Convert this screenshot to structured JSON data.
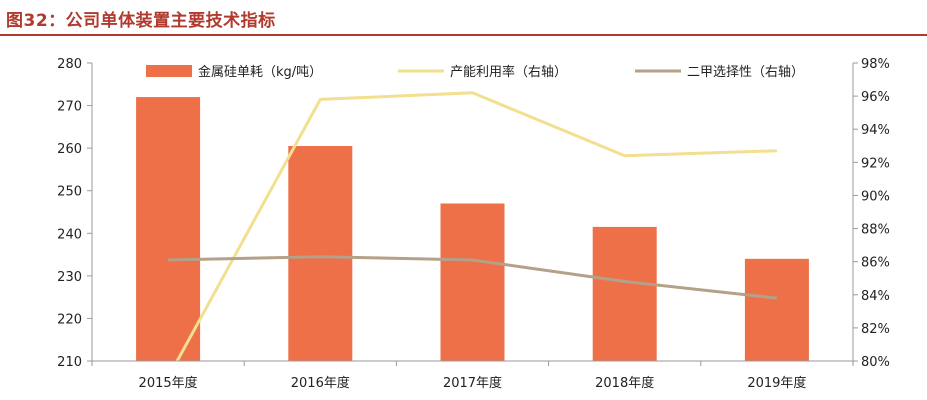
{
  "figure": {
    "title": "图32：公司单体装置主要技术指标"
  },
  "colors": {
    "title": "#b03a2e",
    "bar": "#ed7049",
    "line1": "#f2df8f",
    "line2": "#b5a088",
    "axis": "#9a9a9a"
  },
  "chart_data": {
    "type": "bar",
    "title": "",
    "categories": [
      "2015年度",
      "2016年度",
      "2017年度",
      "2018年度",
      "2019年度"
    ],
    "ylim": [
      210,
      280
    ],
    "y_ticks": [
      210,
      220,
      230,
      240,
      250,
      260,
      270,
      280
    ],
    "y2lim": [
      80,
      98
    ],
    "y2_ticks": [
      "80%",
      "82%",
      "84%",
      "86%",
      "88%",
      "90%",
      "92%",
      "94%",
      "96%",
      "98%"
    ],
    "y2_tick_values": [
      80,
      82,
      84,
      86,
      88,
      90,
      92,
      94,
      96,
      98
    ],
    "legend_position": "top",
    "grid": false,
    "series": [
      {
        "name": "金属硅单耗（kg/吨）",
        "type": "bar",
        "axis": "left",
        "values": [
          272,
          260.5,
          247,
          241.5,
          234
        ]
      },
      {
        "name": "产能利用率（右轴）",
        "type": "line",
        "axis": "right",
        "values": [
          79.0,
          95.8,
          96.2,
          92.4,
          92.7
        ]
      },
      {
        "name": "二甲选择性（右轴）",
        "type": "line",
        "axis": "right",
        "values": [
          86.1,
          86.3,
          86.1,
          84.8,
          83.8
        ]
      }
    ]
  }
}
